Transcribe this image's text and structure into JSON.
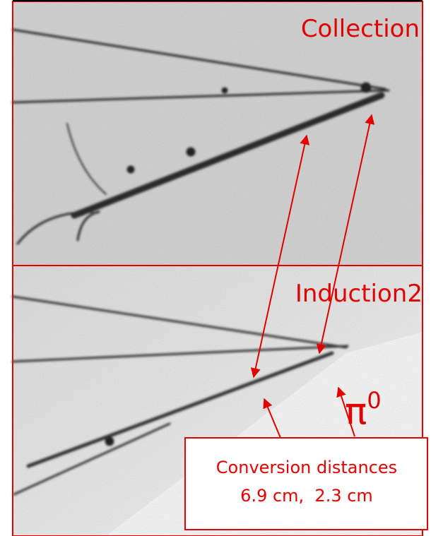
{
  "panels": [
    {
      "label": "Collection"
    },
    {
      "label": "Induction2"
    }
  ],
  "annotations": {
    "particle": {
      "symbol": "π",
      "superscript": "0"
    },
    "box": {
      "title": "Conversion distances",
      "values": "6.9 cm,  2.3 cm"
    }
  }
}
